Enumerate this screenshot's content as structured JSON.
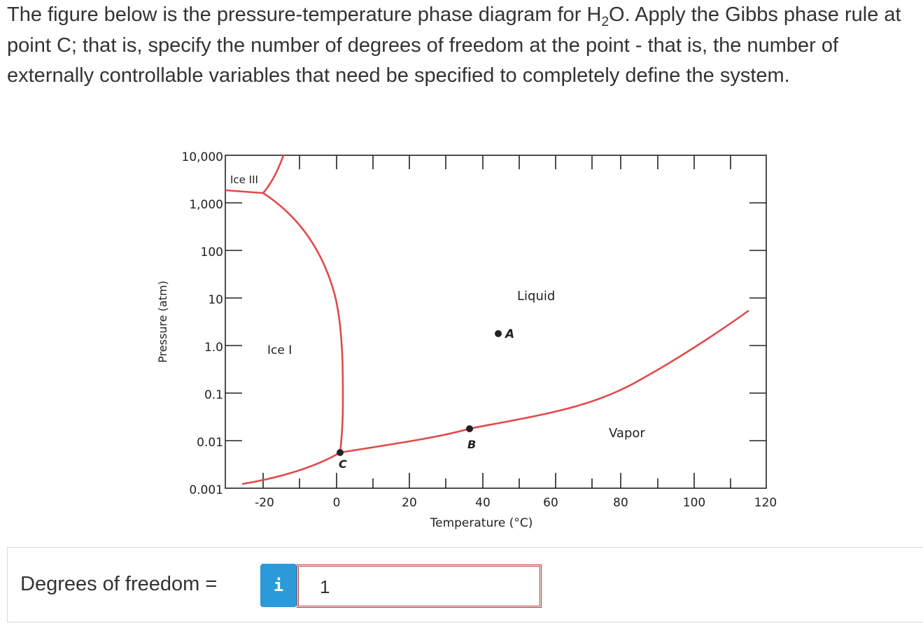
{
  "question": {
    "text_before": "The figure below is the pressure-temperature phase diagram for H",
    "subscript": "2",
    "text_after": "O. Apply the Gibbs phase rule at point C; that is, specify the number of degrees of freedom at the point - that is, the number of externally controllable variables that need be specified to completely define the system."
  },
  "diagram": {
    "ylabel": "Pressure (atm)",
    "xlabel": "Temperature (°C)",
    "y_ticks": [
      "10,000",
      "1,000",
      "100",
      "10",
      "1.0",
      "0.1",
      "0.01",
      "0.001"
    ],
    "x_ticks": [
      "-20",
      "0",
      "20",
      "40",
      "60",
      "80",
      "100",
      "120"
    ],
    "regions": {
      "ice3": "Ice III",
      "ice1": "Ice I",
      "liquid": "Liquid",
      "vapor": "Vapor"
    },
    "points": {
      "A": "A",
      "B": "B",
      "C": "C"
    },
    "curve_color": "#e04a4a"
  },
  "answer": {
    "label": "Degrees of freedom =",
    "info_icon": "i",
    "value": "1"
  }
}
